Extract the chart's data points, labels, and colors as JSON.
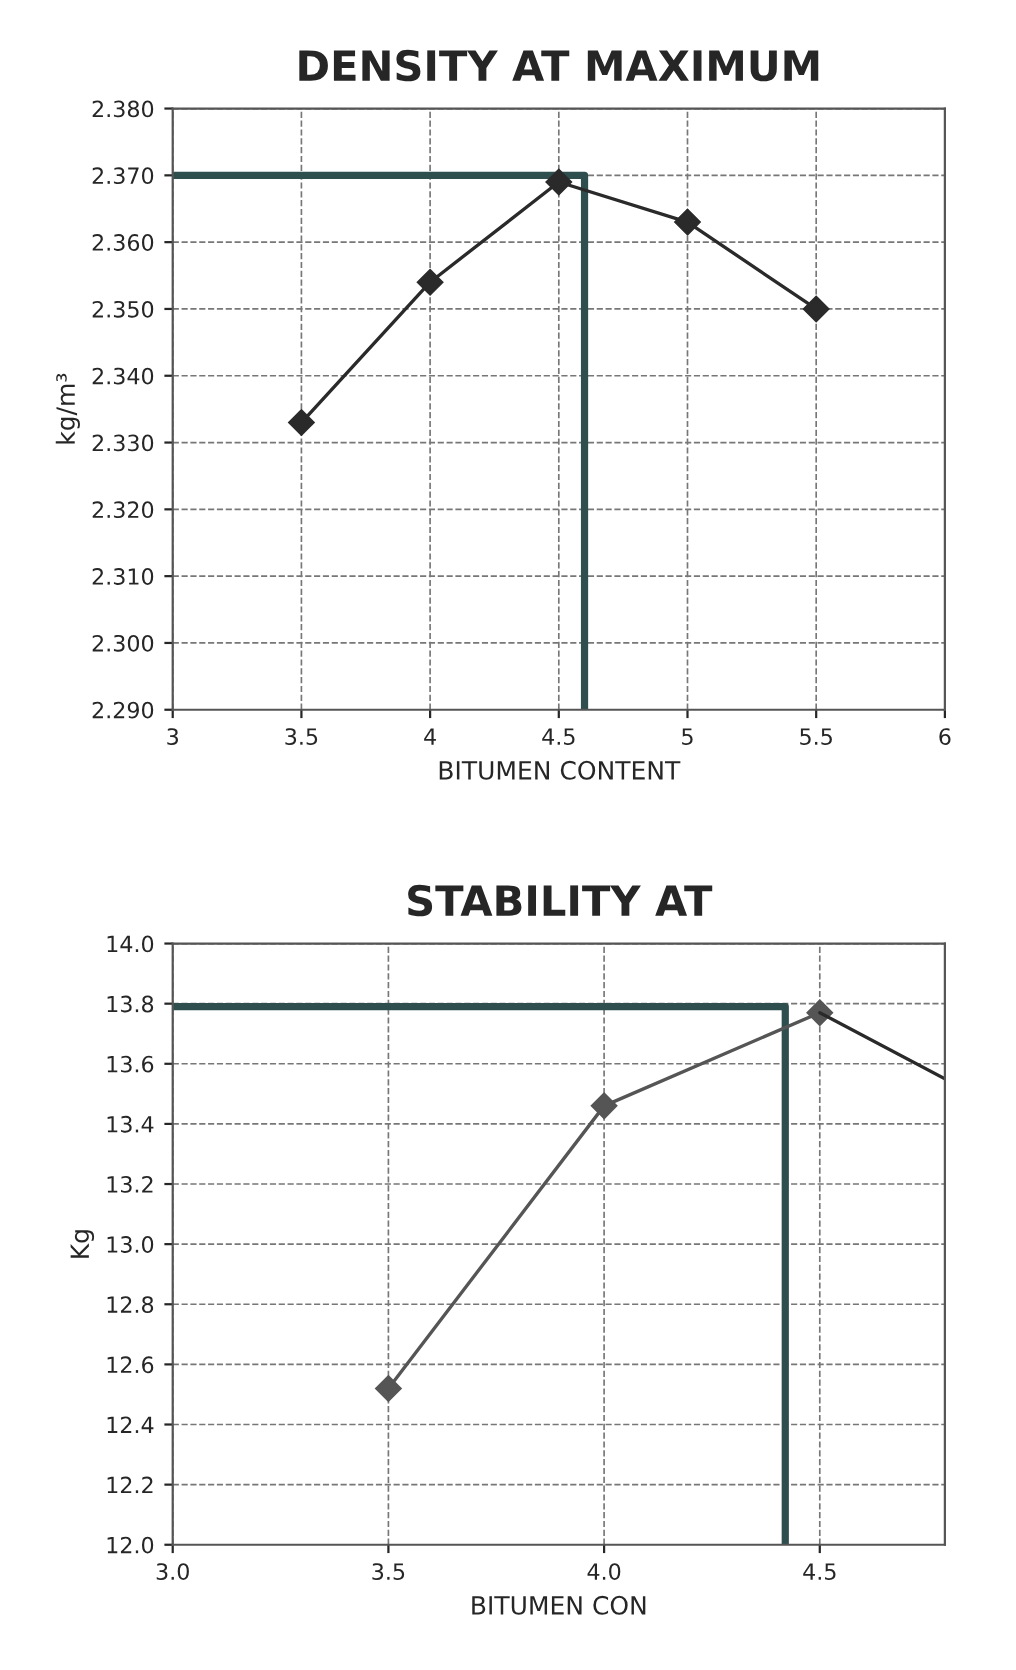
{
  "chart_data": [
    {
      "type": "line",
      "title": "DENSITY AT MAXIMUM",
      "xlabel": "BITUMEN CONTENT",
      "ylabel": "kg/m³",
      "xlim": [
        3,
        6
      ],
      "xticks": [
        3,
        3.5,
        4,
        4.5,
        5,
        5.5,
        6
      ],
      "ylim": [
        2.29,
        2.38
      ],
      "yticks": [
        {
          "value": 2.29,
          "label": "2.290"
        },
        {
          "value": 2.3,
          "label": "2.300"
        },
        {
          "value": 2.31,
          "label": "2.310"
        },
        {
          "value": 2.32,
          "label": "2.320"
        },
        {
          "value": 2.33,
          "label": "2.330"
        },
        {
          "value": 2.34,
          "label": "2.340"
        },
        {
          "value": 2.35,
          "label": "2.350"
        },
        {
          "value": 2.36,
          "label": "2.360"
        },
        {
          "value": 2.37,
          "label": "2.370"
        },
        {
          "value": 2.38,
          "label": "2.380"
        }
      ],
      "grid": true,
      "marker": "diamond",
      "line_style": "solid",
      "series": [
        {
          "type": "step",
          "color": "#2f4f4f",
          "marker": "none",
          "x": [
            3,
            4.6
          ],
          "values": [
            2.37,
            2.29
          ]
        },
        {
          "color": "#2a2a2a",
          "x": [
            3.5,
            4,
            4.5,
            5,
            5.5
          ],
          "values": [
            2.333,
            2.354,
            2.369,
            2.363,
            2.35
          ]
        }
      ]
    },
    {
      "type": "line",
      "title": "STABILITY AT",
      "xlabel": "BITUMEN CON",
      "ylabel": "Kg",
      "xlim": [
        3,
        4.79
      ],
      "xticks": [
        {
          "value": 3,
          "label": "3.0"
        },
        3.5,
        {
          "value": 4,
          "label": "4.0"
        },
        4.5
      ],
      "ylim": [
        12.0,
        14.0
      ],
      "yticks": [
        {
          "value": 12.0,
          "label": "12.0"
        },
        12.2,
        12.4,
        12.6,
        12.8,
        {
          "value": 13.0,
          "label": "13.0"
        },
        13.2,
        13.4,
        13.6,
        13.8,
        {
          "value": 14.0,
          "label": "14.0"
        }
      ],
      "grid": true,
      "marker": "diamond",
      "line_style": "solid",
      "series": [
        {
          "type": "step",
          "color": "#2f4f4f",
          "marker": "none",
          "x": [
            3,
            4.42
          ],
          "values": [
            13.79,
            12.0
          ]
        },
        {
          "color": "#555555",
          "x": [
            3.5,
            4,
            4.5
          ],
          "values": [
            12.52,
            13.46,
            13.77
          ]
        },
        {
          "color": "#2a2a2a",
          "marker": "none",
          "x": [
            4.5,
            4.79
          ],
          "values": [
            13.77,
            13.55
          ]
        }
      ]
    }
  ]
}
